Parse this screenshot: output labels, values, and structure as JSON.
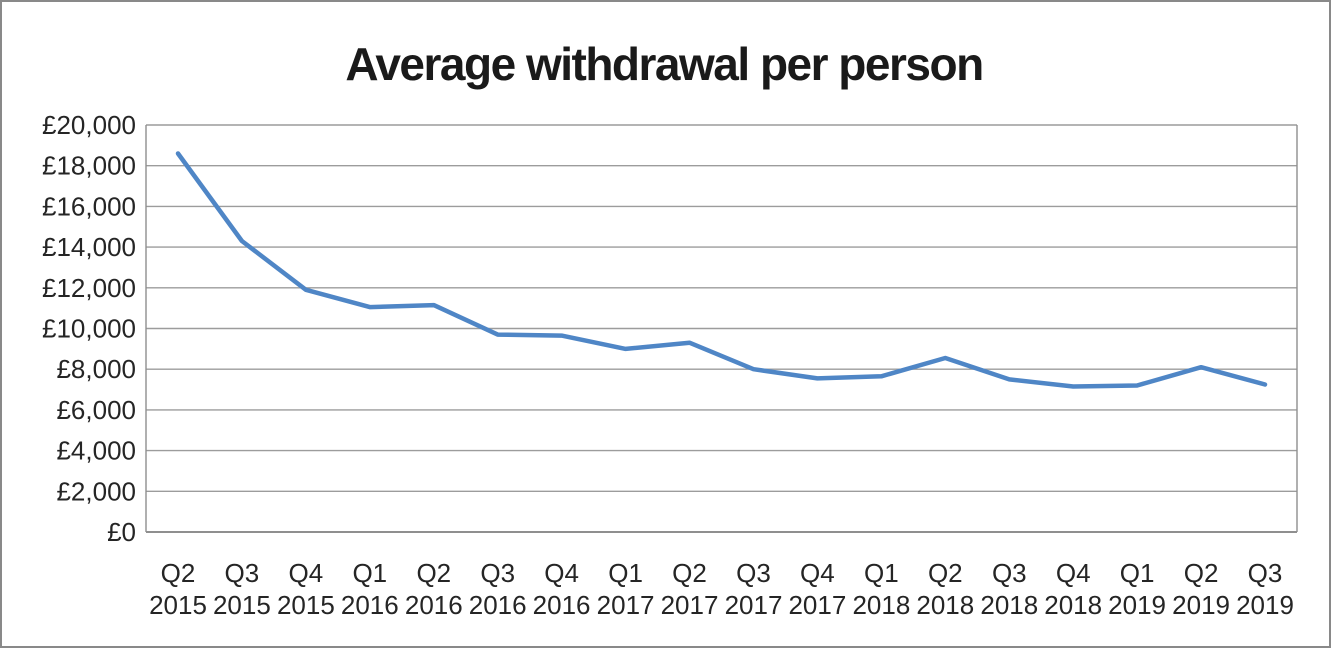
{
  "chart_data": {
    "type": "line",
    "title": "Average withdrawal per person",
    "categories": [
      "Q2 2015",
      "Q3 2015",
      "Q4 2015",
      "Q1 2016",
      "Q2 2016",
      "Q3 2016",
      "Q4 2016",
      "Q1 2017",
      "Q2 2017",
      "Q3 2017",
      "Q4 2017",
      "Q1 2018",
      "Q2 2018",
      "Q3 2018",
      "Q4 2018",
      "Q1 2019",
      "Q2 2019",
      "Q3 2019"
    ],
    "values": [
      18600,
      14300,
      11900,
      11050,
      11150,
      9700,
      9650,
      9000,
      9300,
      8000,
      7550,
      7650,
      8550,
      7500,
      7150,
      7200,
      8100,
      7250
    ],
    "series_name": "Average withdrawal per person",
    "xlabel": "",
    "ylabel": "",
    "ylim": [
      0,
      20000
    ],
    "y_tick_step": 2000,
    "grid": true,
    "legend_position": "none",
    "y_ticks": [
      {
        "value": 20000,
        "label": "£20,000"
      },
      {
        "value": 18000,
        "label": "£18,000"
      },
      {
        "value": 16000,
        "label": "£16,000"
      },
      {
        "value": 14000,
        "label": "£14,000"
      },
      {
        "value": 12000,
        "label": "£12,000"
      },
      {
        "value": 10000,
        "label": "£10,000"
      },
      {
        "value": 8000,
        "label": "£8,000"
      },
      {
        "value": 6000,
        "label": "£6,000"
      },
      {
        "value": 4000,
        "label": "£4,000"
      },
      {
        "value": 2000,
        "label": "£2,000"
      },
      {
        "value": 0,
        "label": "£0"
      }
    ]
  },
  "colors": {
    "line": "#4f86c6",
    "gridline": "#9c9c9c",
    "axis_line": "#8f8f8f",
    "frame_border": "#898989",
    "title_text": "#1a1a1a",
    "tick_text": "#252525",
    "background": "#ffffff"
  }
}
